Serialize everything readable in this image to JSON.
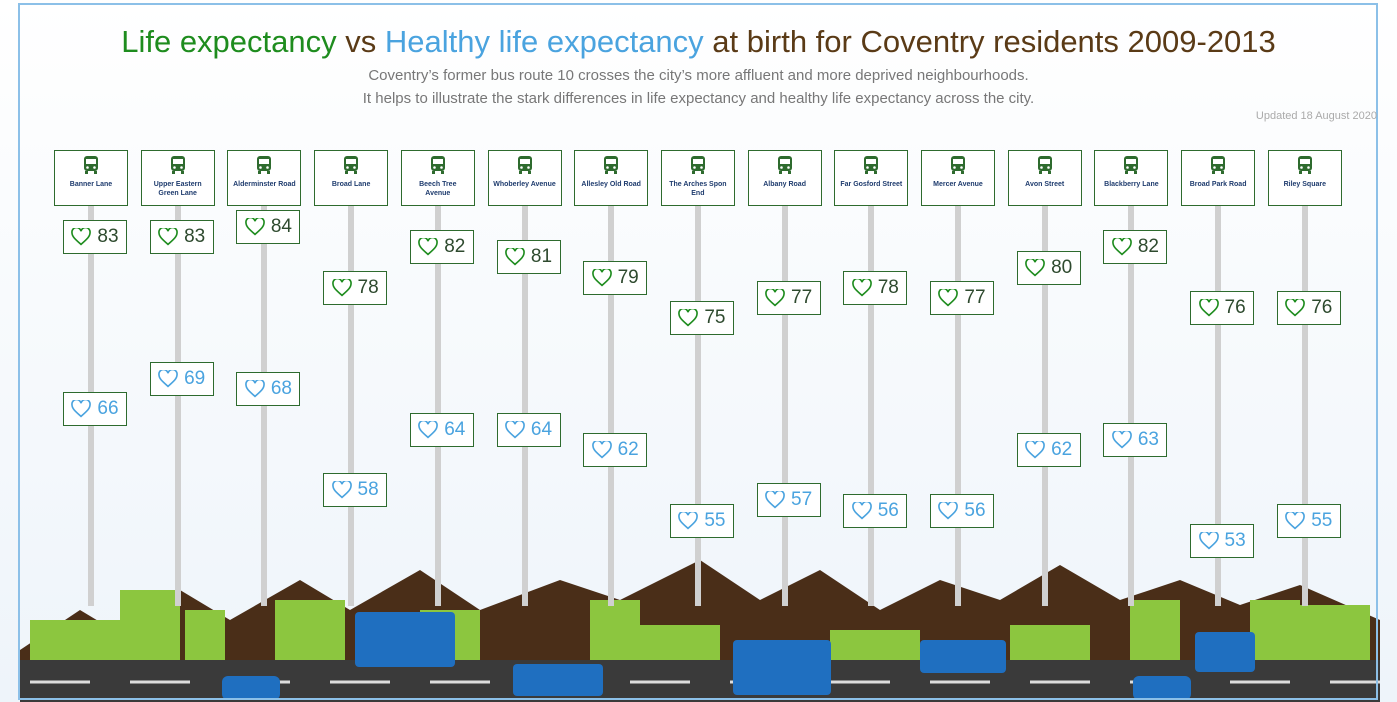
{
  "chart_data": {
    "type": "bus-route",
    "title_connector": "vs",
    "title_rest": "at birth for Coventry residents 2009-2013",
    "subtitle": [
      "Coventry’s former  bus route 10 crosses the city’s more affluent and more deprived  neighbourhoods.",
      "It helps to illustrate the stark differences in life expectancy and healthy life expectancy across the city."
    ],
    "note": "Updated 18 August 2020",
    "categories": [
      "Banner Lane",
      "Upper Eastern Green Lane",
      "Alderminster Road",
      "Broad Lane",
      "Beech Tree Avenue",
      "Whoberley Avenue",
      "Allesley Old Road",
      "The Arches Spon End",
      "Albany Road",
      "Far Gosford Street",
      "Mercer Avenue",
      "Avon Street",
      "Blackberry Lane",
      "Broad Park Road",
      "Riley Square"
    ],
    "series": [
      {
        "name": "Life expectancy",
        "color": "#1e8c1e",
        "values": [
          83,
          83,
          84,
          78,
          82,
          81,
          79,
          75,
          77,
          78,
          77,
          80,
          82,
          76,
          76
        ]
      },
      {
        "name": "Healthy life expectancy",
        "color": "#4aa3df",
        "values": [
          66,
          69,
          68,
          58,
          64,
          64,
          62,
          55,
          57,
          56,
          56,
          62,
          63,
          53,
          55
        ]
      }
    ]
  }
}
